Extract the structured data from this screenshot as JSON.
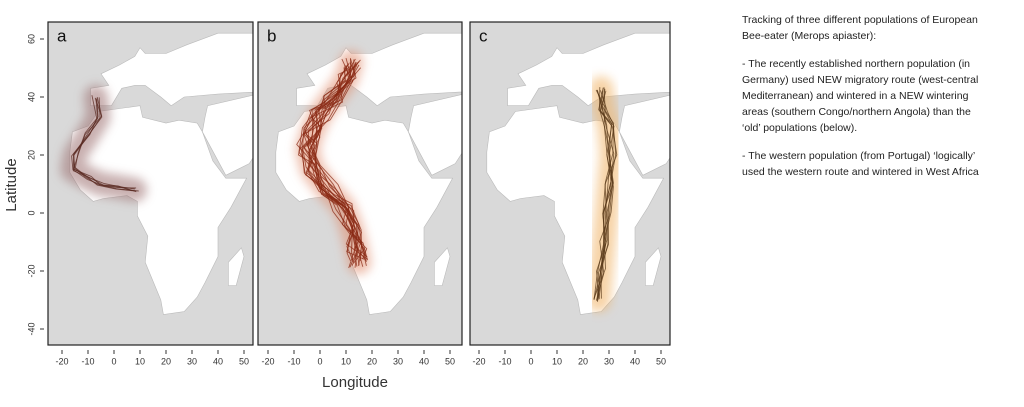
{
  "figure": {
    "panels": [
      {
        "label": "a"
      },
      {
        "label": "b"
      },
      {
        "label": "c"
      }
    ],
    "xticks": [
      -20,
      -10,
      0,
      10,
      20,
      30,
      40,
      50
    ],
    "yticks": [
      60,
      40,
      20,
      0,
      -20,
      -40
    ],
    "xlabel": "Longitude",
    "ylabel": "Latitude"
  },
  "caption": {
    "paragraphs": [
      [
        "Tracking of three different populations of European",
        "Bee-eater (Merops apiaster):"
      ],
      [
        "- The recently established northern population (in",
        "Germany) used NEW migratory route (west-central",
        "Mediterranean) and wintered in a NEW wintering",
        "areas (southern Congo/northern Angola) than the",
        "‘old’ populations (below)."
      ],
      [
        "- The western population (from Portugal) ‘logically’",
        "used the western route and wintered in West Africa"
      ]
    ]
  }
}
